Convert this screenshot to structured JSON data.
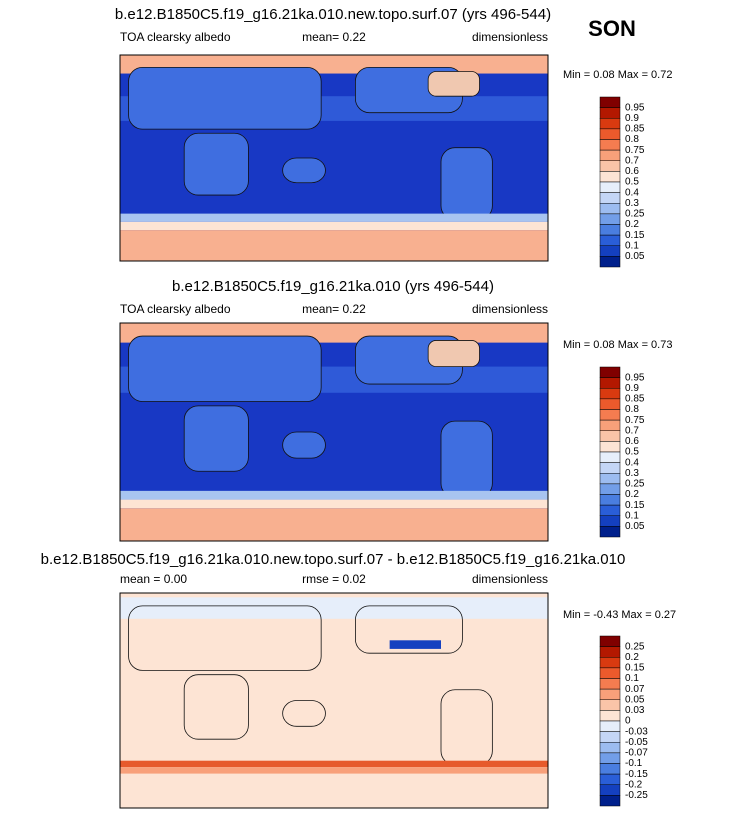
{
  "season": "SON",
  "panels": [
    {
      "title": "b.e12.B1850C5.f19_g16.21ka.010.new.topo.surf.07 (yrs 496-544)",
      "variable": "TOA clearsky albedo",
      "stat1": "mean=  0.22",
      "units": "dimensionless",
      "minmax": "Min =   0.08 Max =   0.72",
      "colorbar": {
        "labels": [
          "0.95",
          "0.9",
          "0.85",
          "0.8",
          "0.75",
          "0.7",
          "0.6",
          "0.5",
          "0.4",
          "0.3",
          "0.25",
          "0.2",
          "0.15",
          "0.1",
          "0.05"
        ],
        "colors": [
          "#800000",
          "#b31800",
          "#d93a10",
          "#ec5a2c",
          "#f47c50",
          "#f8a07a",
          "#fac4a8",
          "#fde4d4",
          "#e6eefa",
          "#c4d6f6",
          "#9cbcf0",
          "#729ee8",
          "#4a7ee0",
          "#2a5ed8",
          "#1440c0",
          "#00208c"
        ]
      }
    },
    {
      "title": "b.e12.B1850C5.f19_g16.21ka.010 (yrs 496-544)",
      "variable": "TOA clearsky albedo",
      "stat1": "mean=  0.22",
      "units": "dimensionless",
      "minmax": "Min =   0.08 Max =   0.73",
      "colorbar": {
        "labels": [
          "0.95",
          "0.9",
          "0.85",
          "0.8",
          "0.75",
          "0.7",
          "0.6",
          "0.5",
          "0.4",
          "0.3",
          "0.25",
          "0.2",
          "0.15",
          "0.1",
          "0.05"
        ],
        "colors": [
          "#800000",
          "#b31800",
          "#d93a10",
          "#ec5a2c",
          "#f47c50",
          "#f8a07a",
          "#fac4a8",
          "#fde4d4",
          "#e6eefa",
          "#c4d6f6",
          "#9cbcf0",
          "#729ee8",
          "#4a7ee0",
          "#2a5ed8",
          "#1440c0",
          "#00208c"
        ]
      }
    },
    {
      "title": "b.e12.B1850C5.f19_g16.21ka.010.new.topo.surf.07 - b.e12.B1850C5.f19_g16.21ka.010",
      "variable": "mean =   0.00",
      "stat1": "rmse =   0.02",
      "units": "dimensionless",
      "minmax": "Min =  -0.43 Max =   0.27",
      "colorbar": {
        "labels": [
          "0.25",
          "0.2",
          "0.15",
          "0.1",
          "0.07",
          "0.05",
          "0.03",
          "0",
          "-0.03",
          "-0.05",
          "-0.07",
          "-0.1",
          "-0.15",
          "-0.2",
          "-0.25"
        ],
        "colors": [
          "#800000",
          "#b31800",
          "#d93a10",
          "#ec5a2c",
          "#f47c50",
          "#f8a07a",
          "#fac4a8",
          "#fde4d4",
          "#e6eefa",
          "#c4d6f6",
          "#9cbcf0",
          "#729ee8",
          "#4a7ee0",
          "#2a5ed8",
          "#1440c0",
          "#00208c"
        ]
      }
    }
  ]
}
